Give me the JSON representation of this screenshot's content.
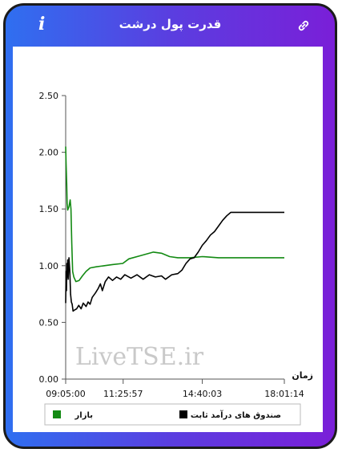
{
  "header": {
    "title": "قدرت پول درشت",
    "info_glyph": "i",
    "link_icon": "link-icon"
  },
  "colors": {
    "frame_left": "#2f6ff0",
    "frame_right": "#7a1fd8",
    "market": "#138a13",
    "fund": "#000000"
  },
  "watermark": "LiveTSE.ir",
  "chart_data": {
    "type": "line",
    "title": "قدرت پول درشت",
    "xlabel": "زمان",
    "ylabel": "",
    "x_range": [
      "09:05:00",
      "18:01:14"
    ],
    "x_ticks": [
      "09:05:00",
      "11:25:57",
      "14:40:03",
      "18:01:14"
    ],
    "ylim": [
      0,
      2.5
    ],
    "y_ticks": [
      "0.00",
      "0.50",
      "1.00",
      "1.50",
      "2.00",
      "2.50"
    ],
    "grid": false,
    "legend": "bottom",
    "series": [
      {
        "name": "بازار",
        "color": "#138a13",
        "points": [
          [
            "09:05:00",
            2.05
          ],
          [
            "09:06:00",
            1.9
          ],
          [
            "09:07:30",
            1.72
          ],
          [
            "09:08:30",
            1.55
          ],
          [
            "09:10:00",
            1.49
          ],
          [
            "09:13:00",
            1.52
          ],
          [
            "09:16:00",
            1.58
          ],
          [
            "09:18:00",
            1.5
          ],
          [
            "09:20:00",
            1.2
          ],
          [
            "09:22:00",
            0.95
          ],
          [
            "09:25:00",
            0.9
          ],
          [
            "09:30:00",
            0.86
          ],
          [
            "09:38:00",
            0.87
          ],
          [
            "09:46:00",
            0.91
          ],
          [
            "09:55:00",
            0.95
          ],
          [
            "10:05:00",
            0.98
          ],
          [
            "10:20:00",
            0.99
          ],
          [
            "10:40:00",
            1.0
          ],
          [
            "11:00:00",
            1.01
          ],
          [
            "11:25:00",
            1.02
          ],
          [
            "11:40:00",
            1.06
          ],
          [
            "12:10:00",
            1.09
          ],
          [
            "12:40:00",
            1.12
          ],
          [
            "13:00:00",
            1.11
          ],
          [
            "13:20:00",
            1.08
          ],
          [
            "13:40:00",
            1.07
          ],
          [
            "14:10:00",
            1.07
          ],
          [
            "14:40:00",
            1.08
          ],
          [
            "15:20:00",
            1.07
          ],
          [
            "16:00:00",
            1.07
          ],
          [
            "17:00:00",
            1.07
          ],
          [
            "18:01:14",
            1.07
          ]
        ]
      },
      {
        "name": "صندوق های درآمد ثابت",
        "color": "#000000",
        "points": [
          [
            "09:05:00",
            0.67
          ],
          [
            "09:06:00",
            0.95
          ],
          [
            "09:07:00",
            0.78
          ],
          [
            "09:08:00",
            1.02
          ],
          [
            "09:09:00",
            0.9
          ],
          [
            "09:10:00",
            1.05
          ],
          [
            "09:11:00",
            0.88
          ],
          [
            "09:13:00",
            1.07
          ],
          [
            "09:15:00",
            0.96
          ],
          [
            "09:17:00",
            0.75
          ],
          [
            "09:19:00",
            0.68
          ],
          [
            "09:21:00",
            0.66
          ],
          [
            "09:23:00",
            0.6
          ],
          [
            "09:27:00",
            0.61
          ],
          [
            "09:32:00",
            0.62
          ],
          [
            "09:37:00",
            0.65
          ],
          [
            "09:43:00",
            0.62
          ],
          [
            "09:48:00",
            0.67
          ],
          [
            "09:55:00",
            0.64
          ],
          [
            "10:00:00",
            0.68
          ],
          [
            "10:05:00",
            0.66
          ],
          [
            "10:10:00",
            0.72
          ],
          [
            "10:18:00",
            0.76
          ],
          [
            "10:25:00",
            0.8
          ],
          [
            "10:30:00",
            0.84
          ],
          [
            "10:35:00",
            0.78
          ],
          [
            "10:42:00",
            0.86
          ],
          [
            "10:50:00",
            0.9
          ],
          [
            "11:00:00",
            0.87
          ],
          [
            "11:10:00",
            0.9
          ],
          [
            "11:20:00",
            0.88
          ],
          [
            "11:30:00",
            0.92
          ],
          [
            "11:45:00",
            0.89
          ],
          [
            "12:00:00",
            0.92
          ],
          [
            "12:15:00",
            0.88
          ],
          [
            "12:30:00",
            0.92
          ],
          [
            "12:45:00",
            0.9
          ],
          [
            "13:00:00",
            0.91
          ],
          [
            "13:10:00",
            0.88
          ],
          [
            "13:25:00",
            0.92
          ],
          [
            "13:40:00",
            0.93
          ],
          [
            "13:50:00",
            0.96
          ],
          [
            "14:00:00",
            1.02
          ],
          [
            "14:10:00",
            1.06
          ],
          [
            "14:20:00",
            1.07
          ],
          [
            "14:30:00",
            1.12
          ],
          [
            "14:40:00",
            1.18
          ],
          [
            "14:50:00",
            1.22
          ],
          [
            "15:00:00",
            1.27
          ],
          [
            "15:10:00",
            1.3
          ],
          [
            "15:20:00",
            1.35
          ],
          [
            "15:30:00",
            1.4
          ],
          [
            "15:40:00",
            1.44
          ],
          [
            "15:50:00",
            1.47
          ],
          [
            "16:30:00",
            1.47
          ],
          [
            "17:30:00",
            1.47
          ],
          [
            "18:01:14",
            1.47
          ]
        ]
      }
    ]
  }
}
